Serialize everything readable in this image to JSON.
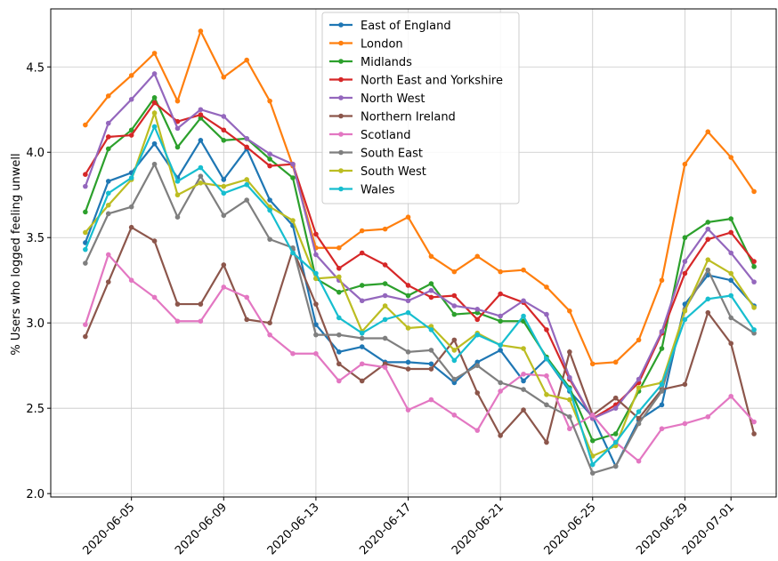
{
  "chart_data": {
    "type": "line",
    "y_label": "% Users who logged feeling unwell",
    "x": [
      "2020-06-03",
      "2020-06-04",
      "2020-06-05",
      "2020-06-06",
      "2020-06-07",
      "2020-06-08",
      "2020-06-09",
      "2020-06-10",
      "2020-06-11",
      "2020-06-12",
      "2020-06-13",
      "2020-06-14",
      "2020-06-15",
      "2020-06-16",
      "2020-06-17",
      "2020-06-18",
      "2020-06-19",
      "2020-06-20",
      "2020-06-21",
      "2020-06-22",
      "2020-06-23",
      "2020-06-24",
      "2020-06-25",
      "2020-06-26",
      "2020-06-27",
      "2020-06-28",
      "2020-06-29",
      "2020-06-30",
      "2020-07-01",
      "2020-07-02"
    ],
    "xlim": [
      "2020-06-01T12:00",
      "2020-07-03T00:00"
    ],
    "xticks": [
      "2020-06-05",
      "2020-06-09",
      "2020-06-13",
      "2020-06-17",
      "2020-06-21",
      "2020-06-25",
      "2020-06-29",
      "2020-07-01"
    ],
    "ylim": [
      1.98,
      4.84
    ],
    "yticks": [
      {
        "value": 2,
        "label": "2.0"
      },
      2.5,
      {
        "value": 3,
        "label": "3.0"
      },
      3.5,
      {
        "value": 4,
        "label": "4.0"
      },
      4.5
    ],
    "grid": true,
    "legend": "upper center",
    "series": [
      {
        "name": "East of England",
        "color": "#1f77b4",
        "values": [
          3.47,
          3.83,
          3.88,
          4.05,
          3.85,
          4.07,
          3.84,
          4.02,
          3.72,
          3.57,
          2.99,
          2.83,
          2.86,
          2.77,
          2.77,
          2.76,
          2.65,
          2.77,
          2.84,
          2.66,
          2.79,
          2.6,
          2.45,
          2.16,
          2.43,
          2.52,
          3.11,
          3.28,
          3.25,
          3.1
        ]
      },
      {
        "name": "London",
        "color": "#ff7f0e",
        "values": [
          4.16,
          4.33,
          4.45,
          4.58,
          4.3,
          4.71,
          4.44,
          4.54,
          4.3,
          3.92,
          3.44,
          3.44,
          3.54,
          3.55,
          3.62,
          3.39,
          3.3,
          3.39,
          3.3,
          3.31,
          3.21,
          3.07,
          2.76,
          2.77,
          2.9,
          3.25,
          3.93,
          4.12,
          3.97,
          3.77
        ]
      },
      {
        "name": "Midlands",
        "color": "#2ca02c",
        "values": [
          3.65,
          4.02,
          4.13,
          4.32,
          4.03,
          4.2,
          4.07,
          4.08,
          3.96,
          3.85,
          3.26,
          3.18,
          3.22,
          3.23,
          3.16,
          3.23,
          3.05,
          3.06,
          3.01,
          3.01,
          2.8,
          2.62,
          2.31,
          2.35,
          2.6,
          2.85,
          3.5,
          3.59,
          3.61,
          3.33
        ]
      },
      {
        "name": "North East and Yorkshire",
        "color": "#d62728",
        "values": [
          3.87,
          4.09,
          4.1,
          4.29,
          4.18,
          4.22,
          4.13,
          4.03,
          3.92,
          3.93,
          3.52,
          3.32,
          3.41,
          3.34,
          3.22,
          3.15,
          3.16,
          3.02,
          3.17,
          3.12,
          2.96,
          2.67,
          2.44,
          2.52,
          2.65,
          2.94,
          3.29,
          3.49,
          3.53,
          3.36
        ]
      },
      {
        "name": "North West",
        "color": "#9467bd",
        "values": [
          3.8,
          4.17,
          4.31,
          4.46,
          4.14,
          4.25,
          4.21,
          4.08,
          3.99,
          3.93,
          3.4,
          3.25,
          3.13,
          3.16,
          3.13,
          3.19,
          3.1,
          3.08,
          3.04,
          3.13,
          3.05,
          2.68,
          2.44,
          2.5,
          2.67,
          2.95,
          3.36,
          3.55,
          3.41,
          3.24
        ]
      },
      {
        "name": "Northern Ireland",
        "color": "#8c564b",
        "values": [
          2.92,
          3.24,
          3.56,
          3.48,
          3.11,
          3.11,
          3.34,
          3.02,
          3.0,
          3.43,
          3.11,
          2.76,
          2.66,
          2.76,
          2.73,
          2.73,
          2.9,
          2.59,
          2.34,
          2.49,
          2.3,
          2.83,
          2.46,
          2.56,
          2.44,
          2.61,
          2.64,
          3.06,
          2.88,
          2.35
        ]
      },
      {
        "name": "Scotland",
        "color": "#e377c2",
        "values": [
          2.99,
          3.4,
          3.25,
          3.15,
          3.01,
          3.01,
          3.21,
          3.15,
          2.93,
          2.82,
          2.82,
          2.66,
          2.76,
          2.74,
          2.49,
          2.55,
          2.46,
          2.37,
          2.6,
          2.7,
          2.69,
          2.38,
          2.46,
          2.3,
          2.19,
          2.38,
          2.41,
          2.45,
          2.57,
          2.42
        ]
      },
      {
        "name": "South East",
        "color": "#7f7f7f",
        "values": [
          3.35,
          3.64,
          3.68,
          3.93,
          3.62,
          3.86,
          3.63,
          3.72,
          3.49,
          3.44,
          2.93,
          2.93,
          2.91,
          2.91,
          2.83,
          2.84,
          2.67,
          2.75,
          2.65,
          2.61,
          2.52,
          2.45,
          2.12,
          2.16,
          2.41,
          2.6,
          3.08,
          3.31,
          3.03,
          2.94
        ]
      },
      {
        "name": "South West",
        "color": "#bcbd22",
        "values": [
          3.53,
          3.69,
          3.84,
          4.23,
          3.75,
          3.82,
          3.8,
          3.84,
          3.68,
          3.6,
          3.26,
          3.27,
          2.95,
          3.1,
          2.97,
          2.98,
          2.84,
          2.94,
          2.87,
          2.85,
          2.58,
          2.55,
          2.22,
          2.28,
          2.62,
          2.65,
          3.07,
          3.37,
          3.29,
          3.09
        ]
      },
      {
        "name": "Wales",
        "color": "#17becf",
        "values": [
          3.43,
          3.76,
          3.85,
          4.15,
          3.83,
          3.91,
          3.76,
          3.81,
          3.66,
          3.41,
          3.29,
          3.03,
          2.94,
          3.02,
          3.06,
          2.96,
          2.78,
          2.93,
          2.87,
          3.04,
          2.79,
          2.61,
          2.17,
          2.3,
          2.48,
          2.64,
          3.02,
          3.14,
          3.16,
          2.96
        ]
      }
    ]
  }
}
